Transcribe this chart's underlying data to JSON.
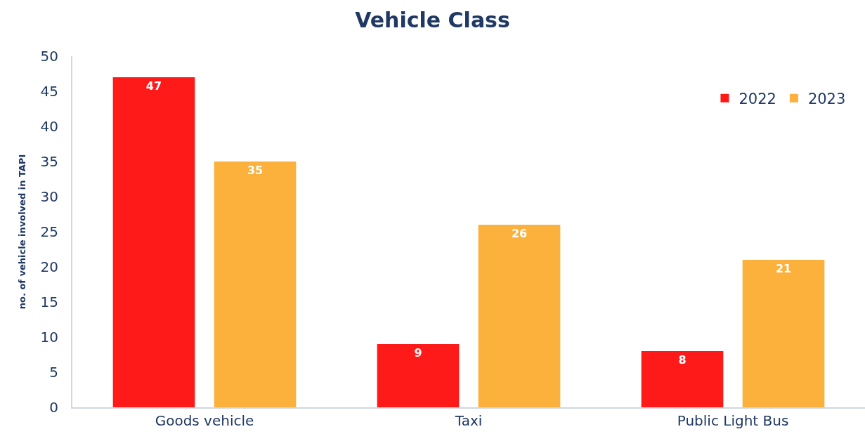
{
  "chart_data": {
    "type": "bar",
    "title": "Vehicle Class",
    "ylabel": "no. of vehicle involved in TAPI",
    "categories": [
      "Goods vehicle",
      "Taxi",
      "Public Light Bus"
    ],
    "series": [
      {
        "name": "2022",
        "color": "#ff1a1a",
        "values": [
          47,
          9,
          8
        ]
      },
      {
        "name": "2023",
        "color": "#fbb13c",
        "values": [
          35,
          26,
          21
        ]
      }
    ],
    "ylim": [
      0,
      50
    ],
    "yticks": [
      0,
      5,
      10,
      15,
      20,
      25,
      30,
      35,
      40,
      45,
      50
    ],
    "grid": false,
    "legend": "top right",
    "data_labels": true
  }
}
